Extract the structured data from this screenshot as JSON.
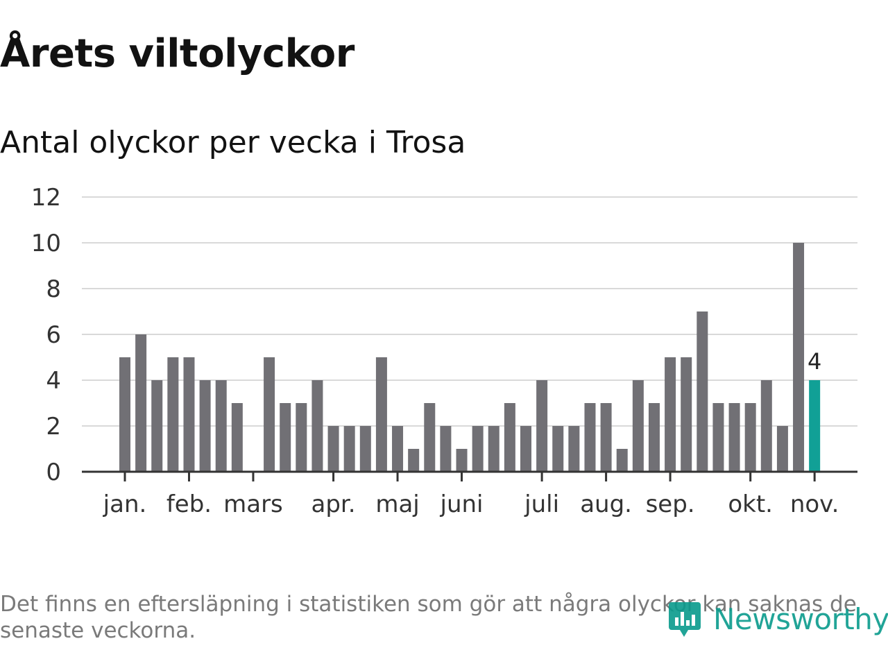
{
  "title": "Årets viltolyckor",
  "subtitle": "Antal olyckor per vecka i Trosa",
  "footnote": "Det finns en eftersläpning i statistiken som gör att några olyckor kan saknas de senaste veckorna.",
  "logo": {
    "text": "Newsworthy",
    "icon": "newsworthy-logo-icon",
    "color": "#0a9b8c"
  },
  "colors": {
    "bar": "#717075",
    "highlight": "#11a096",
    "grid": "#d9d9d9",
    "axis": "#333333",
    "text": "#333333"
  },
  "chart_data": {
    "type": "bar",
    "unit": "Antal olyckor per vecka",
    "ylim": [
      0,
      12
    ],
    "yticks": [
      0,
      2,
      4,
      6,
      8,
      10,
      12
    ],
    "grid": true,
    "values": [
      5,
      6,
      4,
      5,
      5,
      4,
      4,
      3,
      0,
      5,
      3,
      3,
      4,
      2,
      2,
      2,
      5,
      2,
      1,
      3,
      2,
      1,
      2,
      2,
      3,
      2,
      4,
      2,
      2,
      3,
      3,
      1,
      4,
      3,
      5,
      5,
      7,
      3,
      3,
      3,
      4,
      2,
      10,
      4
    ],
    "highlight_index": 43,
    "highlight_label": "4",
    "month_labels": [
      {
        "label": "jan.",
        "index": 0
      },
      {
        "label": "feb.",
        "index": 4
      },
      {
        "label": "mars",
        "index": 8
      },
      {
        "label": "apr.",
        "index": 13
      },
      {
        "label": "maj",
        "index": 17
      },
      {
        "label": "juni",
        "index": 21
      },
      {
        "label": "juli",
        "index": 26
      },
      {
        "label": "aug.",
        "index": 30
      },
      {
        "label": "sep.",
        "index": 34
      },
      {
        "label": "okt.",
        "index": 39
      },
      {
        "label": "nov.",
        "index": 43
      }
    ]
  }
}
